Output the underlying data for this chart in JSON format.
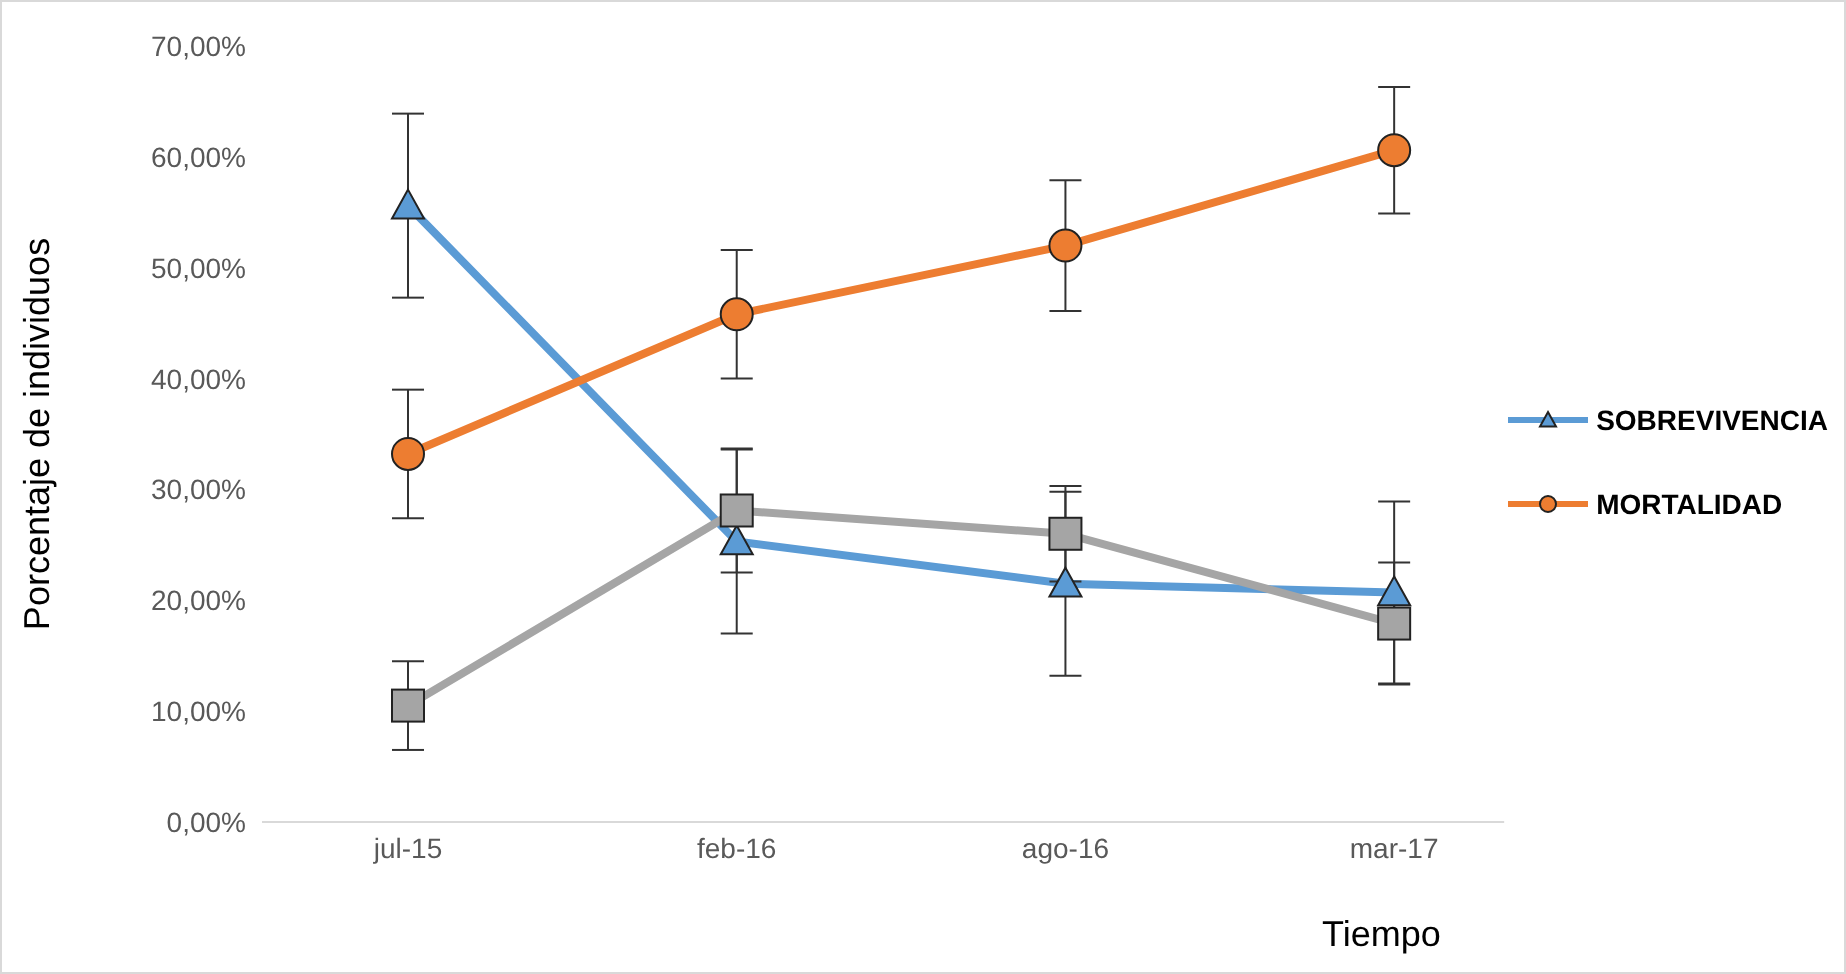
{
  "chart_data": {
    "type": "line",
    "xlabel": "Tiempo",
    "ylabel": "Porcentaje de individuos",
    "categories": [
      "jul-15",
      "feb-16",
      "ago-16",
      "mar-17"
    ],
    "series": [
      {
        "name": "SOBREVIVENCIA",
        "color": "#5b9bd5",
        "marker": "triangle",
        "values": [
          55.6,
          25.3,
          21.5,
          20.7
        ],
        "errors": [
          8.3,
          8.3,
          8.3,
          8.2
        ]
      },
      {
        "name": "MORTALIDAD",
        "color": "#ed7d31",
        "marker": "circle",
        "values": [
          33.2,
          45.8,
          52.0,
          60.6
        ],
        "errors": [
          5.8,
          5.8,
          5.9,
          5.7
        ]
      },
      {
        "color": "#a5a5a5",
        "marker": "square",
        "values": [
          10.5,
          28.1,
          26.0,
          17.9
        ],
        "errors": [
          4.0,
          5.6,
          4.3,
          5.5
        ]
      }
    ],
    "ylim": [
      0,
      70
    ],
    "yticks": [
      {
        "value": 0,
        "label": "0,00%"
      },
      {
        "value": 10,
        "label": "10,00%"
      },
      {
        "value": 20,
        "label": "20,00%"
      },
      {
        "value": 30,
        "label": "30,00%"
      },
      {
        "value": 40,
        "label": "40,00%"
      },
      {
        "value": 50,
        "label": "50,00%"
      },
      {
        "value": 60,
        "label": "60,00%"
      },
      {
        "value": 70,
        "label": "70,00%"
      }
    ],
    "grid": false,
    "legend": "right",
    "line_style": "solid"
  }
}
